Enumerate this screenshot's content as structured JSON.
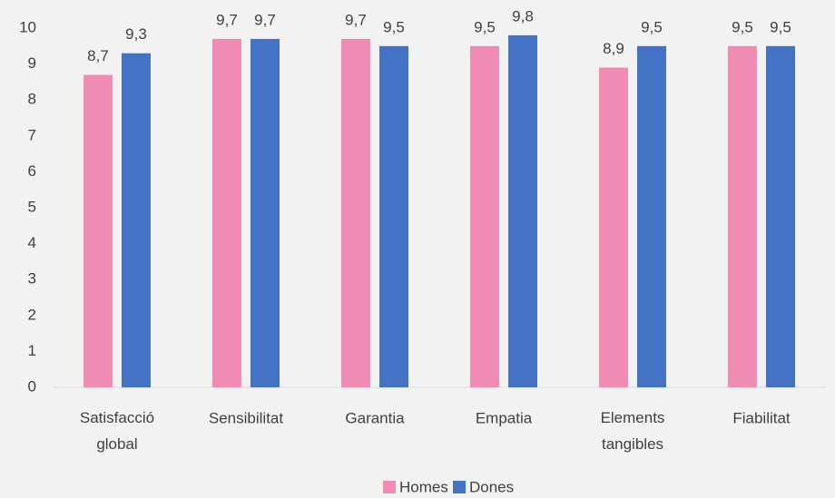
{
  "chart_data": {
    "type": "bar",
    "categories": [
      "Satisfacció global",
      "Sensibilitat",
      "Garantia",
      "Empatia",
      "Elements tangibles",
      "Fiabilitat"
    ],
    "series": [
      {
        "name": "Homes",
        "color": "#f08cb4",
        "values": [
          8.7,
          9.7,
          9.7,
          9.5,
          8.9,
          9.5
        ],
        "value_labels": [
          "8,7",
          "9,7",
          "9,7",
          "9,5",
          "8,9",
          "9,5"
        ]
      },
      {
        "name": "Dones",
        "color": "#4472c4",
        "values": [
          9.3,
          9.7,
          9.5,
          9.8,
          9.5,
          9.5
        ],
        "value_labels": [
          "9,3",
          "9,7",
          "9,5",
          "9,8",
          "9,5",
          "9,5"
        ]
      }
    ],
    "ylim": [
      0,
      10
    ],
    "yticks": [
      0,
      1,
      2,
      3,
      4,
      5,
      6,
      7,
      8,
      9,
      10
    ],
    "grid": false,
    "legend": "bottom"
  }
}
